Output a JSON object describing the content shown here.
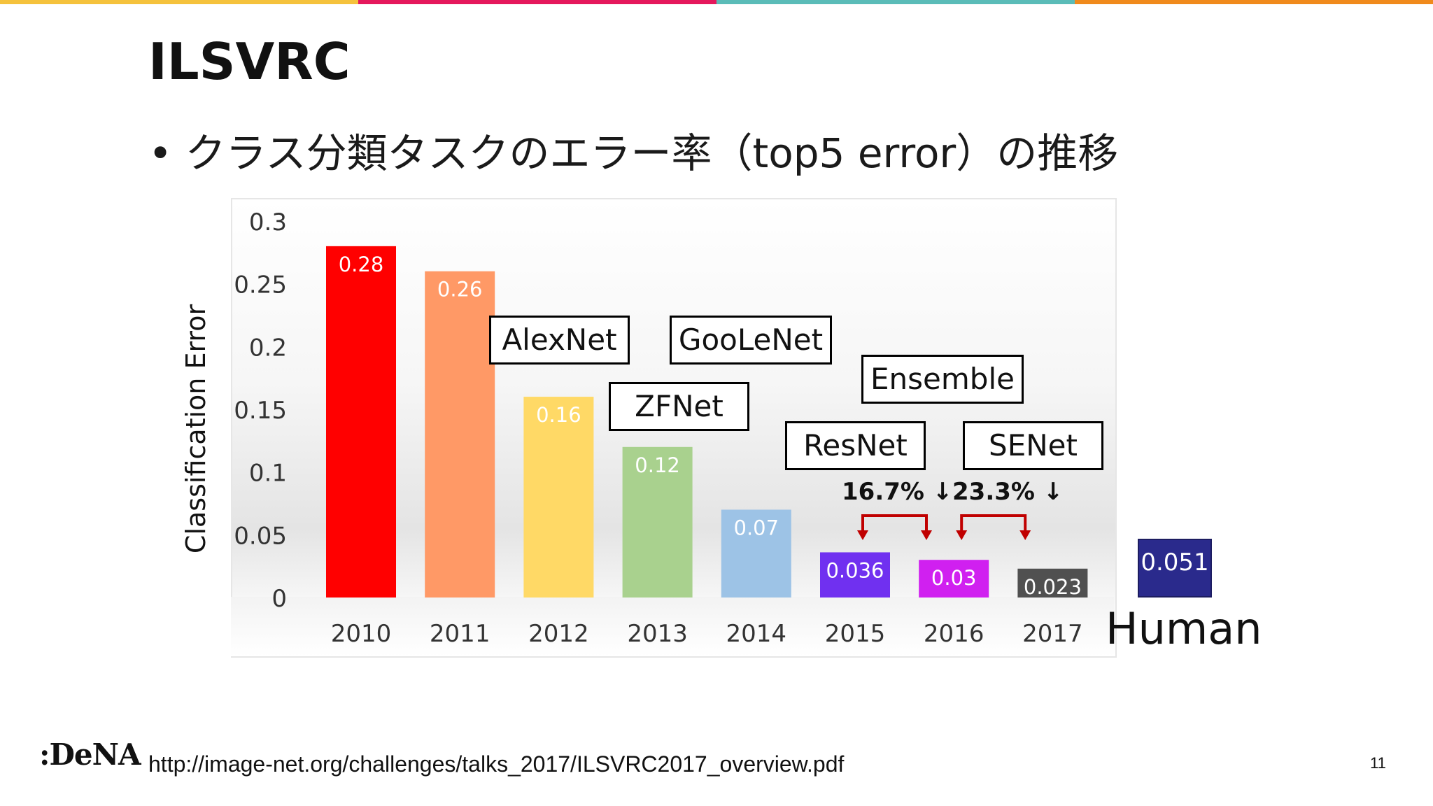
{
  "slide": {
    "title": "ILSVRC",
    "bullet": "• クラス分類タスクのエラー率（top5 error）の推移",
    "source_url": "http://image-net.org/challenges/talks_2017/ILSVRC2017_overview.pdf",
    "page_number": "11",
    "logo_text": ":DeNA",
    "top_bar_colors": [
      "#f5c23c",
      "#e5185c",
      "#5bbcb8",
      "#f08a1c"
    ]
  },
  "chart_data": {
    "type": "bar",
    "ylabel": "Classification Error",
    "ylim": [
      0,
      0.3
    ],
    "yticks": [
      "0",
      "0.05",
      "0.1",
      "0.15",
      "0.2",
      "0.25",
      "0.3"
    ],
    "categories": [
      "2010",
      "2011",
      "2012",
      "2013",
      "2014",
      "2015",
      "2016",
      "2017"
    ],
    "values": [
      0.28,
      0.26,
      0.16,
      0.12,
      0.07,
      0.036,
      0.03,
      0.023
    ],
    "value_labels": [
      "0.28",
      "0.26",
      "0.16",
      "0.12",
      "0.07",
      "0.036",
      "0.03",
      "0.023"
    ],
    "colors": [
      "#ff0000",
      "#ff9966",
      "#ffd966",
      "#a9d18e",
      "#9dc3e6",
      "#7030f0",
      "#d020f0",
      "#505050"
    ],
    "annotations": [
      {
        "text": "AlexNet",
        "year": "2012"
      },
      {
        "text": "ZFNet",
        "year": "2013"
      },
      {
        "text": "GooLeNet",
        "year": "2014"
      },
      {
        "text": "ResNet",
        "year": "2015"
      },
      {
        "text": "Ensemble",
        "year": "2016"
      },
      {
        "text": "SENet",
        "year": "2017"
      }
    ],
    "reductions": [
      {
        "text": "16.7% ↓",
        "from": "2015",
        "to": "2016"
      },
      {
        "text": "23.3% ↓",
        "from": "2016",
        "to": "2017"
      }
    ],
    "human": {
      "label": "Human",
      "value": 0.051,
      "value_label": "0.051",
      "color": "#2a2a8c"
    }
  }
}
